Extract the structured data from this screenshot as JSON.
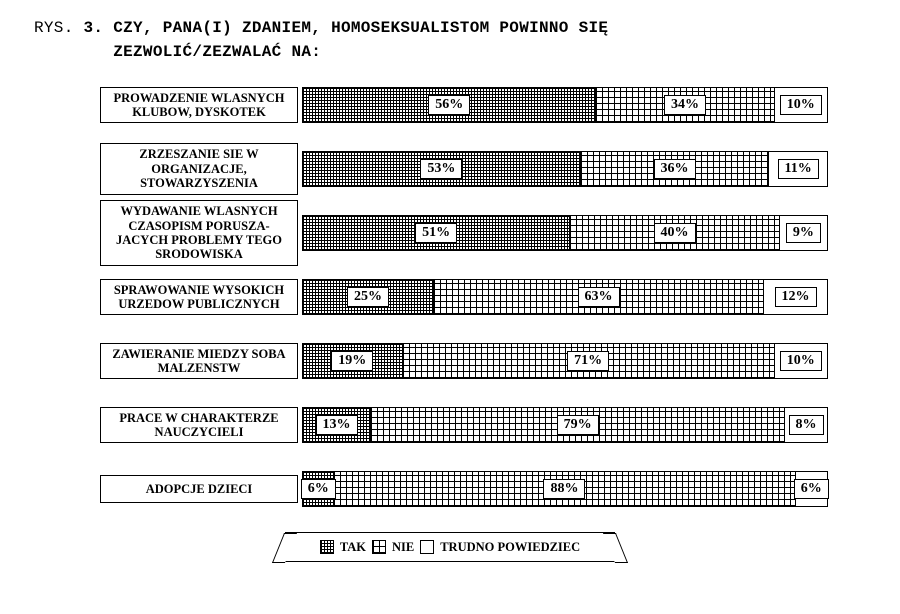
{
  "title_prefix": "RYS. ",
  "title_num": "3. ",
  "title_line1": "CZY, PANA(I) ZDANIEM, HOMOSEKSUALISTOM POWINNO SIĘ",
  "title_line2": "ZEZWOLIĆ/ZEZWALAĆ NA:",
  "legend": {
    "tak": "TAK",
    "nie": "NIE",
    "trudno": "TRUDNO POWIEDZIEC"
  },
  "chart": {
    "type": "stacked-horizontal-bar",
    "series": [
      "TAK",
      "NIE",
      "TRUDNO POWIEDZIEC"
    ],
    "patterns": [
      "dense-crosshatch",
      "wide-grid",
      "white"
    ],
    "border_color": "#000000",
    "background_color": "#ffffff",
    "value_suffix": "%",
    "label_fontsize_pt": 12.5,
    "value_fontsize_pt": 14,
    "title_font": "Courier New",
    "title_fontsize_pt": 16,
    "rows": [
      {
        "label": "PROWADZENIE WLASNYCH KLUBOW, DYSKOTEK",
        "values": [
          56,
          34,
          10
        ]
      },
      {
        "label": "ZRZESZANIE SIE W ORGANIZACJE, STOWARZYSZENIA",
        "values": [
          53,
          36,
          11
        ]
      },
      {
        "label": "WYDAWANIE WLASNYCH CZASOPISM PORUSZA- JACYCH PROBLEMY TEGO SRODOWISKA",
        "values": [
          51,
          40,
          9
        ]
      },
      {
        "label": "SPRAWOWANIE WYSOKICH URZEDOW PUBLICZNYCH",
        "values": [
          25,
          63,
          12
        ]
      },
      {
        "label": "ZAWIERANIE MIEDZY SOBA MALZENSTW",
        "values": [
          19,
          71,
          10
        ]
      },
      {
        "label": "PRACE W CHARAKTERZE NAUCZYCIELI",
        "values": [
          13,
          79,
          8
        ]
      },
      {
        "label": "ADOPCJE DZIECI",
        "values": [
          6,
          88,
          6
        ]
      }
    ]
  }
}
